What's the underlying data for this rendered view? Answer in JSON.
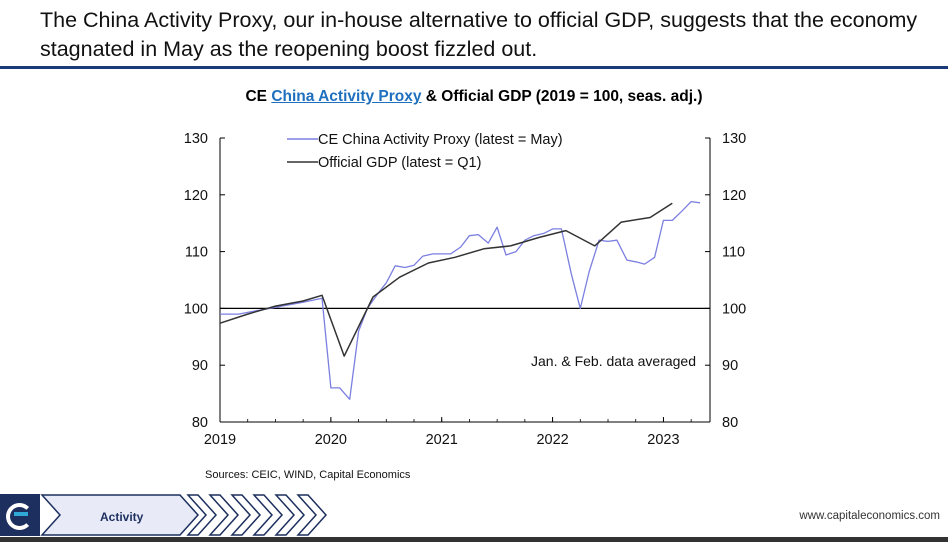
{
  "headline": "The China Activity Proxy, our in-house alternative to official GDP, suggests that the economy stagnated in May as the reopening boost fizzled out.",
  "chart_title": {
    "prefix": "CE ",
    "link": "China Activity Proxy",
    "suffix": " & Official GDP (2019 = 100, seas. adj.)"
  },
  "chart_data": {
    "type": "line",
    "x_ticks": [
      "2019",
      "2020",
      "2021",
      "2022",
      "2023"
    ],
    "y_ticks": [
      "80",
      "90",
      "100",
      "110",
      "120",
      "130"
    ],
    "ylim": [
      80,
      130
    ],
    "xlim": [
      2019.0,
      2023.42
    ],
    "reference_line": 100,
    "annotation": "Jan. & Feb. data averaged",
    "series": [
      {
        "name": "CE China Activity Proxy (latest = May)",
        "color": "#7b7fe0",
        "points": [
          [
            2019.0,
            99.0
          ],
          [
            2019.08,
            99.0
          ],
          [
            2019.17,
            99.0
          ],
          [
            2019.25,
            99.3
          ],
          [
            2019.33,
            99.6
          ],
          [
            2019.42,
            99.9
          ],
          [
            2019.5,
            100.2
          ],
          [
            2019.58,
            100.5
          ],
          [
            2019.67,
            100.8
          ],
          [
            2019.75,
            101.1
          ],
          [
            2019.83,
            101.4
          ],
          [
            2019.92,
            101.8
          ],
          [
            2020.0,
            86.0
          ],
          [
            2020.08,
            86.0
          ],
          [
            2020.17,
            84.0
          ],
          [
            2020.25,
            96.0
          ],
          [
            2020.33,
            100.0
          ],
          [
            2020.42,
            102.5
          ],
          [
            2020.5,
            104.5
          ],
          [
            2020.58,
            107.5
          ],
          [
            2020.67,
            107.2
          ],
          [
            2020.75,
            107.6
          ],
          [
            2020.83,
            109.2
          ],
          [
            2020.92,
            109.6
          ],
          [
            2021.0,
            109.6
          ],
          [
            2021.08,
            109.6
          ],
          [
            2021.17,
            110.8
          ],
          [
            2021.25,
            112.8
          ],
          [
            2021.33,
            113.0
          ],
          [
            2021.42,
            111.5
          ],
          [
            2021.5,
            114.3
          ],
          [
            2021.58,
            109.4
          ],
          [
            2021.67,
            110.0
          ],
          [
            2021.75,
            112.0
          ],
          [
            2021.83,
            112.8
          ],
          [
            2021.92,
            113.2
          ],
          [
            2022.0,
            114.0
          ],
          [
            2022.08,
            114.0
          ],
          [
            2022.17,
            106.0
          ],
          [
            2022.25,
            100.0
          ],
          [
            2022.33,
            106.5
          ],
          [
            2022.42,
            112.0
          ],
          [
            2022.5,
            111.8
          ],
          [
            2022.58,
            112.0
          ],
          [
            2022.67,
            108.5
          ],
          [
            2022.75,
            108.2
          ],
          [
            2022.83,
            107.8
          ],
          [
            2022.92,
            109.0
          ],
          [
            2023.0,
            115.5
          ],
          [
            2023.08,
            115.5
          ],
          [
            2023.17,
            117.2
          ],
          [
            2023.25,
            118.8
          ],
          [
            2023.33,
            118.6
          ]
        ]
      },
      {
        "name": "Official GDP (latest = Q1)",
        "color": "#333333",
        "points": [
          [
            2019.0,
            97.4
          ],
          [
            2019.25,
            99.0
          ],
          [
            2019.5,
            100.4
          ],
          [
            2019.75,
            101.3
          ],
          [
            2019.92,
            102.3
          ],
          [
            2020.12,
            91.6
          ],
          [
            2020.38,
            102.0
          ],
          [
            2020.62,
            105.5
          ],
          [
            2020.88,
            108.0
          ],
          [
            2021.12,
            109.0
          ],
          [
            2021.38,
            110.5
          ],
          [
            2021.62,
            111.0
          ],
          [
            2021.88,
            112.5
          ],
          [
            2022.12,
            113.7
          ],
          [
            2022.38,
            111.0
          ],
          [
            2022.62,
            115.2
          ],
          [
            2022.88,
            116.0
          ],
          [
            2023.08,
            118.5
          ]
        ]
      }
    ]
  },
  "source": "Sources: CEIC, WIND, Capital Economics",
  "footer": {
    "section": "Activity",
    "website": "www.capitaleconomics.com"
  }
}
